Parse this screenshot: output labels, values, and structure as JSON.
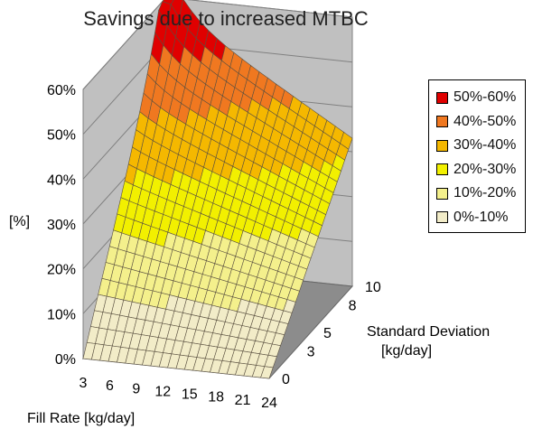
{
  "chart_data": {
    "type": "surface3d",
    "title": "Savings due to increased MTBC",
    "ylabel": "[%]",
    "xlabel": "Fill Rate [kg/day]",
    "zlabel_line1": "Standard Deviation",
    "zlabel_line2": "[kg/day]",
    "y_ticks": [
      "0%",
      "10%",
      "20%",
      "30%",
      "40%",
      "50%",
      "60%"
    ],
    "ylim": [
      0,
      60
    ],
    "x_ticks": [
      "3",
      "6",
      "9",
      "12",
      "15",
      "18",
      "21",
      "24"
    ],
    "xlim": [
      3,
      24
    ],
    "z_ticks": [
      "0",
      "3",
      "5",
      "8",
      "10"
    ],
    "zlim": [
      0,
      10
    ],
    "corner_values": [
      {
        "fill_rate": 3,
        "std_dev": 0,
        "savings_pct": 0
      },
      {
        "fill_rate": 24,
        "std_dev": 0,
        "savings_pct": 0
      },
      {
        "fill_rate": 3,
        "std_dev": 10,
        "savings_pct": 58
      },
      {
        "fill_rate": 24,
        "std_dev": 10,
        "savings_pct": 33
      }
    ],
    "legend": [
      {
        "label": "50%-60%",
        "color": "#e00000"
      },
      {
        "label": "40%-50%",
        "color": "#f07820"
      },
      {
        "label": "30%-40%",
        "color": "#f5b800"
      },
      {
        "label": "20%-30%",
        "color": "#f2f000"
      },
      {
        "label": "10%-20%",
        "color": "#f4f08c"
      },
      {
        "label": "0%-10%",
        "color": "#f2ecc8"
      }
    ],
    "legend_position": "right",
    "grid": true
  }
}
